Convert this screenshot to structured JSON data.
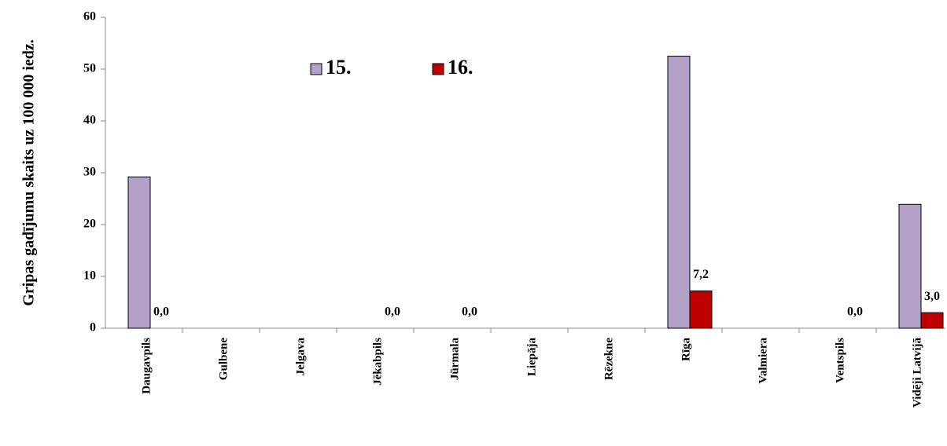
{
  "chart_data": {
    "type": "bar",
    "ylabel": "Gripas gadījumu skaits uz 100 000 iedz.",
    "categories": [
      "Daugavpils",
      "Gulbene",
      "Jelgava",
      "Jēkabpils",
      "Jūrmala",
      "Liepāja",
      "Rēzekne",
      "Rīga",
      "Valmiera",
      "Ventspils",
      "Vidēji Latvijā"
    ],
    "series": [
      {
        "name": "15.",
        "color": "#b3a2c7",
        "values": [
          29.2,
          null,
          null,
          null,
          null,
          null,
          null,
          52.5,
          null,
          null,
          23.9
        ]
      },
      {
        "name": "16.",
        "color": "#c00000",
        "values": [
          0,
          null,
          null,
          0,
          0,
          null,
          null,
          7.2,
          null,
          0,
          3.0
        ],
        "value_labels": [
          "0,0",
          null,
          null,
          "0,0",
          "0,0",
          null,
          null,
          "7,2",
          null,
          "0,0",
          "3,0"
        ]
      }
    ],
    "ylim": [
      0,
      60
    ],
    "yticks": [
      0,
      10,
      20,
      30,
      40,
      50,
      60
    ],
    "grid": false,
    "legend": "top"
  }
}
